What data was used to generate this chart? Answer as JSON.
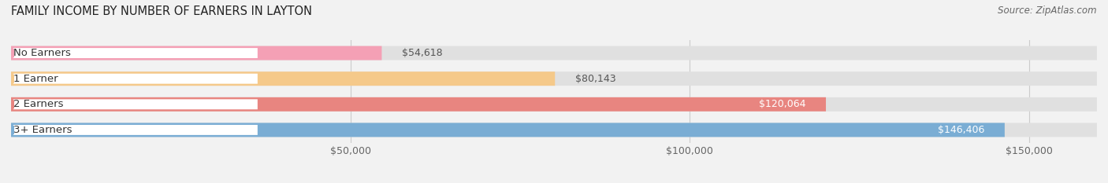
{
  "title": "FAMILY INCOME BY NUMBER OF EARNERS IN LAYTON",
  "source": "Source: ZipAtlas.com",
  "categories": [
    "No Earners",
    "1 Earner",
    "2 Earners",
    "3+ Earners"
  ],
  "values": [
    54618,
    80143,
    120064,
    146406
  ],
  "labels": [
    "$54,618",
    "$80,143",
    "$120,064",
    "$146,406"
  ],
  "bar_colors": [
    "#f4a0b5",
    "#f5c98a",
    "#e88580",
    "#7aadd4"
  ],
  "bar_label_inside": [
    false,
    false,
    true,
    true
  ],
  "bar_label_colors_inside": [
    "#555555",
    "#555555",
    "#ffffff",
    "#ffffff"
  ],
  "background_color": "#f2f2f2",
  "bar_bg_color": "#e0e0e0",
  "xlim_max": 160000,
  "xticks": [
    50000,
    100000,
    150000
  ],
  "xtick_labels": [
    "$50,000",
    "$100,000",
    "$150,000"
  ],
  "title_fontsize": 10.5,
  "source_fontsize": 8.5,
  "value_label_fontsize": 9,
  "cat_label_fontsize": 9.5,
  "tick_fontsize": 9
}
